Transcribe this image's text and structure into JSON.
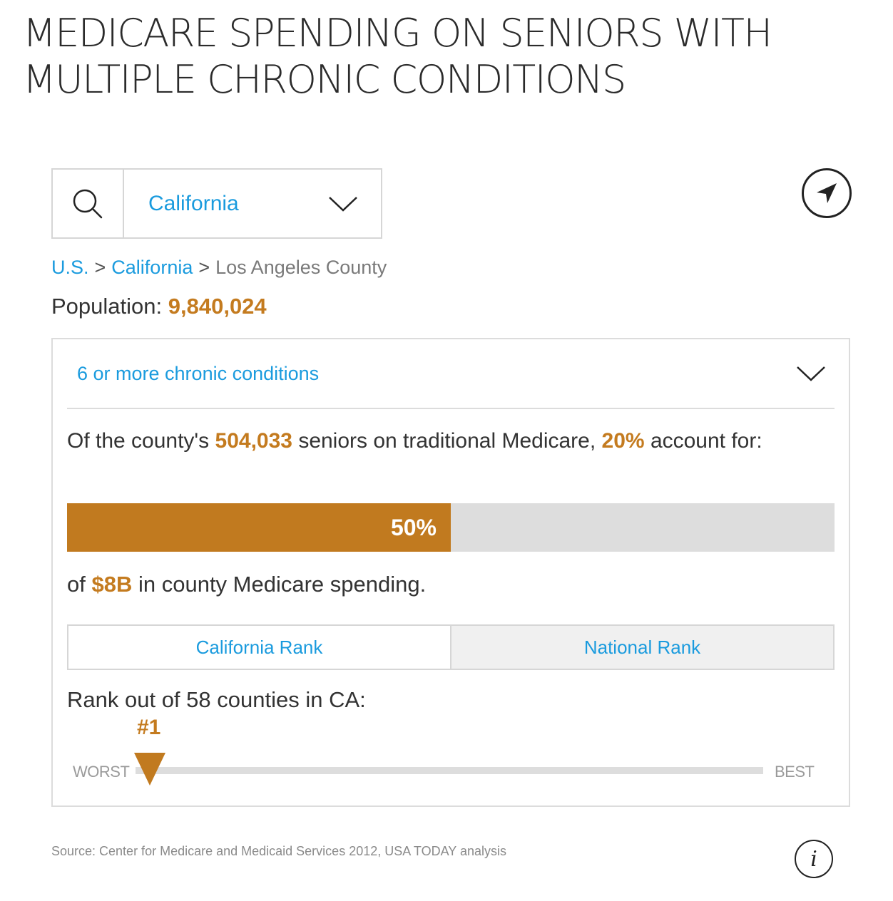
{
  "title": "MEDICARE SPENDING ON SENIORS WITH MULTIPLE CHRONIC CONDITIONS",
  "search": {
    "icon": "search-icon",
    "selected_state": "California",
    "dropdown_icon": "chevron-down-icon"
  },
  "locate_icon": "navigation-arrow-icon",
  "breadcrumb": {
    "level1": "U.S.",
    "sep": ">",
    "level2": "California",
    "level3": "Los Angeles County"
  },
  "population": {
    "label": "Population:",
    "value": "9,840,024"
  },
  "condition": {
    "selected": "6 or more chronic conditions"
  },
  "summary": {
    "prefix": "Of the county's",
    "seniors": "504,033",
    "middle": "seniors on traditional Medicare,",
    "percent": "20%",
    "suffix": "account for:"
  },
  "share_bar": {
    "label": "50%",
    "fraction": 0.5
  },
  "spending": {
    "prefix": "of",
    "amount": "$8B",
    "suffix": "in county Medicare spending."
  },
  "rank_tabs": [
    {
      "label": "California Rank",
      "active": true
    },
    {
      "label": "National Rank",
      "active": false
    }
  ],
  "rank": {
    "heading": "Rank out of 58 counties in CA:",
    "value": "#1",
    "rank_number": 1,
    "total": 58,
    "worst_label": "WORST",
    "best_label": "BEST"
  },
  "source": "Source: Center for Medicare and Medicaid Services 2012, USA TODAY analysis",
  "info_label": "i",
  "colors": {
    "accent": "#c17a1f",
    "link": "#1a9bde",
    "track": "#dddddd"
  }
}
